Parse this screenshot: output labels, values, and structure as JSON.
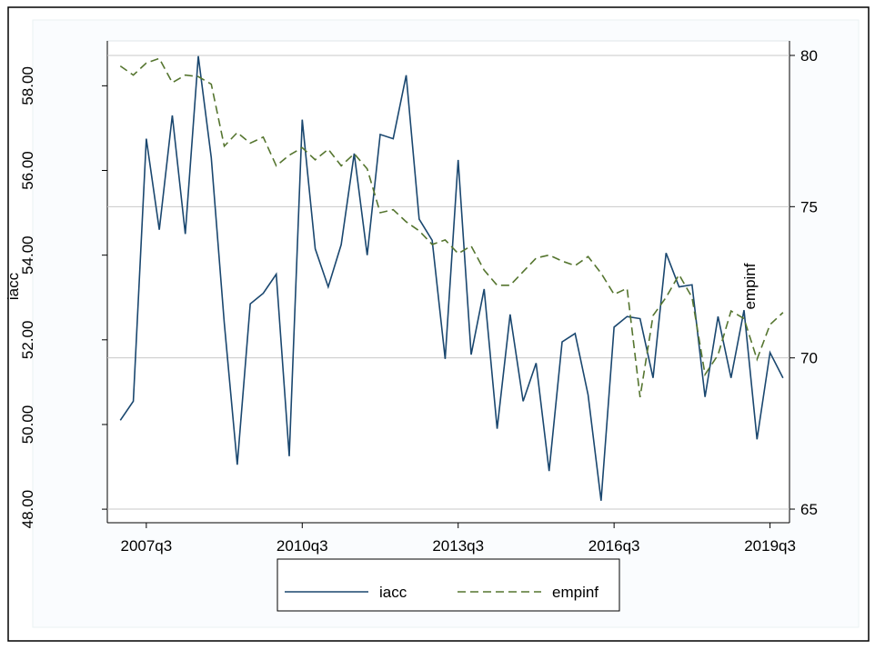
{
  "chart_data": {
    "type": "line",
    "x": [
      188,
      189,
      190,
      191,
      192,
      193,
      194,
      195,
      196,
      197,
      198,
      199,
      200,
      201,
      202,
      203,
      204,
      205,
      206,
      207,
      208,
      209,
      210,
      211,
      212,
      213,
      214,
      215,
      216,
      217,
      218,
      219,
      220,
      221,
      222,
      223,
      224,
      225,
      226,
      227,
      228,
      229,
      230,
      231,
      232,
      233,
      234,
      235,
      236,
      237,
      238,
      239
    ],
    "xlim": [
      187,
      239.5
    ],
    "xticks": [
      {
        "value": 190,
        "label": "2007q3"
      },
      {
        "value": 202,
        "label": "2010q3"
      },
      {
        "value": 214,
        "label": "2013q3"
      },
      {
        "value": 226,
        "label": "2016q3"
      },
      {
        "value": 238,
        "label": "2019q3"
      }
    ],
    "ylabel": "iacc",
    "ylim": [
      47.68,
      59.06
    ],
    "yticks": [
      {
        "value": 48,
        "label": "48.00"
      },
      {
        "value": 50,
        "label": "50.00"
      },
      {
        "value": 52,
        "label": "52.00"
      },
      {
        "value": 54,
        "label": "54.00"
      },
      {
        "value": 56,
        "label": "56.00"
      },
      {
        "value": 58,
        "label": "58.00"
      }
    ],
    "y2label": "empinf",
    "y2lim": [
      64.55,
      80.48
    ],
    "y2ticks": [
      65,
      70,
      75,
      80
    ],
    "grid": true,
    "legend": "bottom",
    "series": [
      {
        "name": "iacc",
        "color": "#1a476f",
        "values": [
          50.1,
          50.55,
          56.75,
          54.6,
          57.3,
          54.5,
          58.7,
          56.3,
          52.4,
          49.05,
          52.85,
          53.1,
          53.55,
          49.25,
          57.2,
          54.15,
          53.25,
          54.25,
          56.4,
          54.0,
          56.85,
          56.75,
          58.25,
          54.85,
          54.35,
          51.55,
          56.25,
          51.65,
          53.2,
          49.9,
          52.6,
          50.55,
          51.45,
          48.9,
          51.95,
          52.15,
          50.7,
          48.2,
          52.3,
          52.55,
          52.5,
          51.1,
          54.05,
          53.25,
          53.3,
          50.65,
          52.55,
          51.1,
          52.7,
          49.65,
          51.7,
          51.1
        ]
      },
      {
        "name": "empinf",
        "color": "#55752f",
        "axis": "y2",
        "dashed": true,
        "values": [
          79.65,
          79.35,
          79.75,
          79.9,
          79.1,
          79.35,
          79.3,
          79.05,
          77.0,
          77.45,
          77.1,
          77.3,
          76.35,
          76.7,
          76.95,
          76.55,
          76.9,
          76.35,
          76.75,
          76.25,
          74.8,
          74.9,
          74.5,
          74.2,
          73.75,
          73.9,
          73.45,
          73.7,
          72.9,
          72.4,
          72.4,
          72.85,
          73.3,
          73.4,
          73.2,
          73.05,
          73.35,
          72.8,
          72.1,
          72.3,
          68.7,
          71.4,
          72.0,
          72.75,
          72.0,
          69.45,
          70.1,
          71.55,
          71.3,
          69.95,
          71.1,
          71.5
        ]
      }
    ]
  }
}
